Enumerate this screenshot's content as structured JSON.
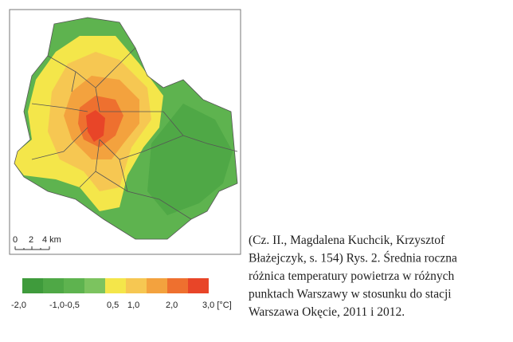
{
  "map": {
    "scale_bar": {
      "labels": [
        "0",
        "2",
        "4 km"
      ]
    },
    "legend": {
      "colors": [
        "#3f9b3c",
        "#4fa846",
        "#5eb34f",
        "#7cc35f",
        "#f4e64a",
        "#f6c752",
        "#f3a23e",
        "#ee702f",
        "#e84528"
      ],
      "labels": [
        "-2,0",
        "-1,0-0,5",
        "0,5",
        "1,0",
        "2,0",
        "3,0 [°C]"
      ]
    }
  },
  "caption": {
    "lines": [
      "(Cz. II., Magdalena Kuchcik, Krzysztof",
      "Błażejczyk, s. 154) Rys. 2. Średnia roczna",
      "różnica temperatury powietrza w różnych",
      "punktach Warszawy w stosunku do stacji",
      "Warszawa Okęcie, 2011 i 2012."
    ]
  }
}
